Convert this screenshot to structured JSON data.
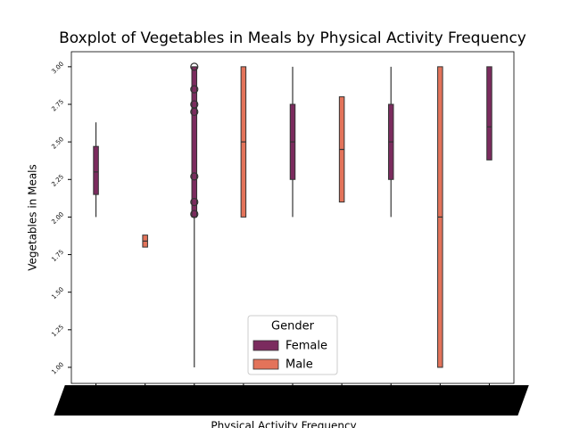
{
  "chart_data": {
    "type": "box",
    "title": "Boxplot of Vegetables in Meals by Physical Activity Frequency",
    "x_label": "Physical Activity Frequency",
    "y_label": "Vegetables in Meals",
    "categories": [
      null,
      null,
      null,
      null,
      null,
      null,
      null,
      null,
      null
    ],
    "series": [
      {
        "name": "Female",
        "color": "#7b2b5e",
        "values": [
          {
            "min": 2.0,
            "q1": 2.15,
            "median": 2.3,
            "q3": 2.47,
            "max": 2.63
          },
          null,
          {
            "min": 1.0,
            "q1": 2.0,
            "median": 2.0,
            "q3": 3.0,
            "max": 3.0,
            "outliers": [
              2.02,
              2.1,
              2.27,
              2.7,
              2.75,
              2.85,
              3.0
            ]
          },
          null,
          {
            "min": 2.0,
            "q1": 2.25,
            "median": 2.5,
            "q3": 2.75,
            "max": 3.0
          },
          null,
          {
            "min": 2.0,
            "q1": 2.25,
            "median": 2.5,
            "q3": 2.75,
            "max": 3.0
          },
          null,
          {
            "min": 2.38,
            "q1": 2.38,
            "median": 2.6,
            "q3": 3.0,
            "max": 3.0
          }
        ]
      },
      {
        "name": "Male",
        "color": "#e3735a",
        "values": [
          null,
          {
            "min": 1.8,
            "q1": 1.8,
            "median": 1.84,
            "q3": 1.88,
            "max": 1.88
          },
          null,
          {
            "min": 2.0,
            "q1": 2.0,
            "median": 2.5,
            "q3": 3.0,
            "max": 3.0
          },
          null,
          {
            "min": 2.1,
            "q1": 2.1,
            "median": 2.45,
            "q3": 2.8,
            "max": 2.8
          },
          null,
          {
            "min": 1.0,
            "q1": 1.0,
            "median": 2.0,
            "q3": 3.0,
            "max": 3.0
          },
          null
        ]
      }
    ],
    "ylim": [
      0.893,
      3.1
    ],
    "yticks": [
      {
        "value": 1,
        "label": "1.00"
      },
      {
        "value": 1.25,
        "label": "1.25"
      },
      {
        "value": 1.5,
        "label": "1.50"
      },
      {
        "value": 1.75,
        "label": "1.75"
      },
      {
        "value": 2,
        "label": "2.00"
      },
      {
        "value": 2.25,
        "label": "2.25"
      },
      {
        "value": 2.5,
        "label": "2.50"
      },
      {
        "value": 2.75,
        "label": "2.75"
      },
      {
        "value": 3,
        "label": "3.00"
      }
    ],
    "legend_title": "Gender",
    "legend": "lower center"
  }
}
